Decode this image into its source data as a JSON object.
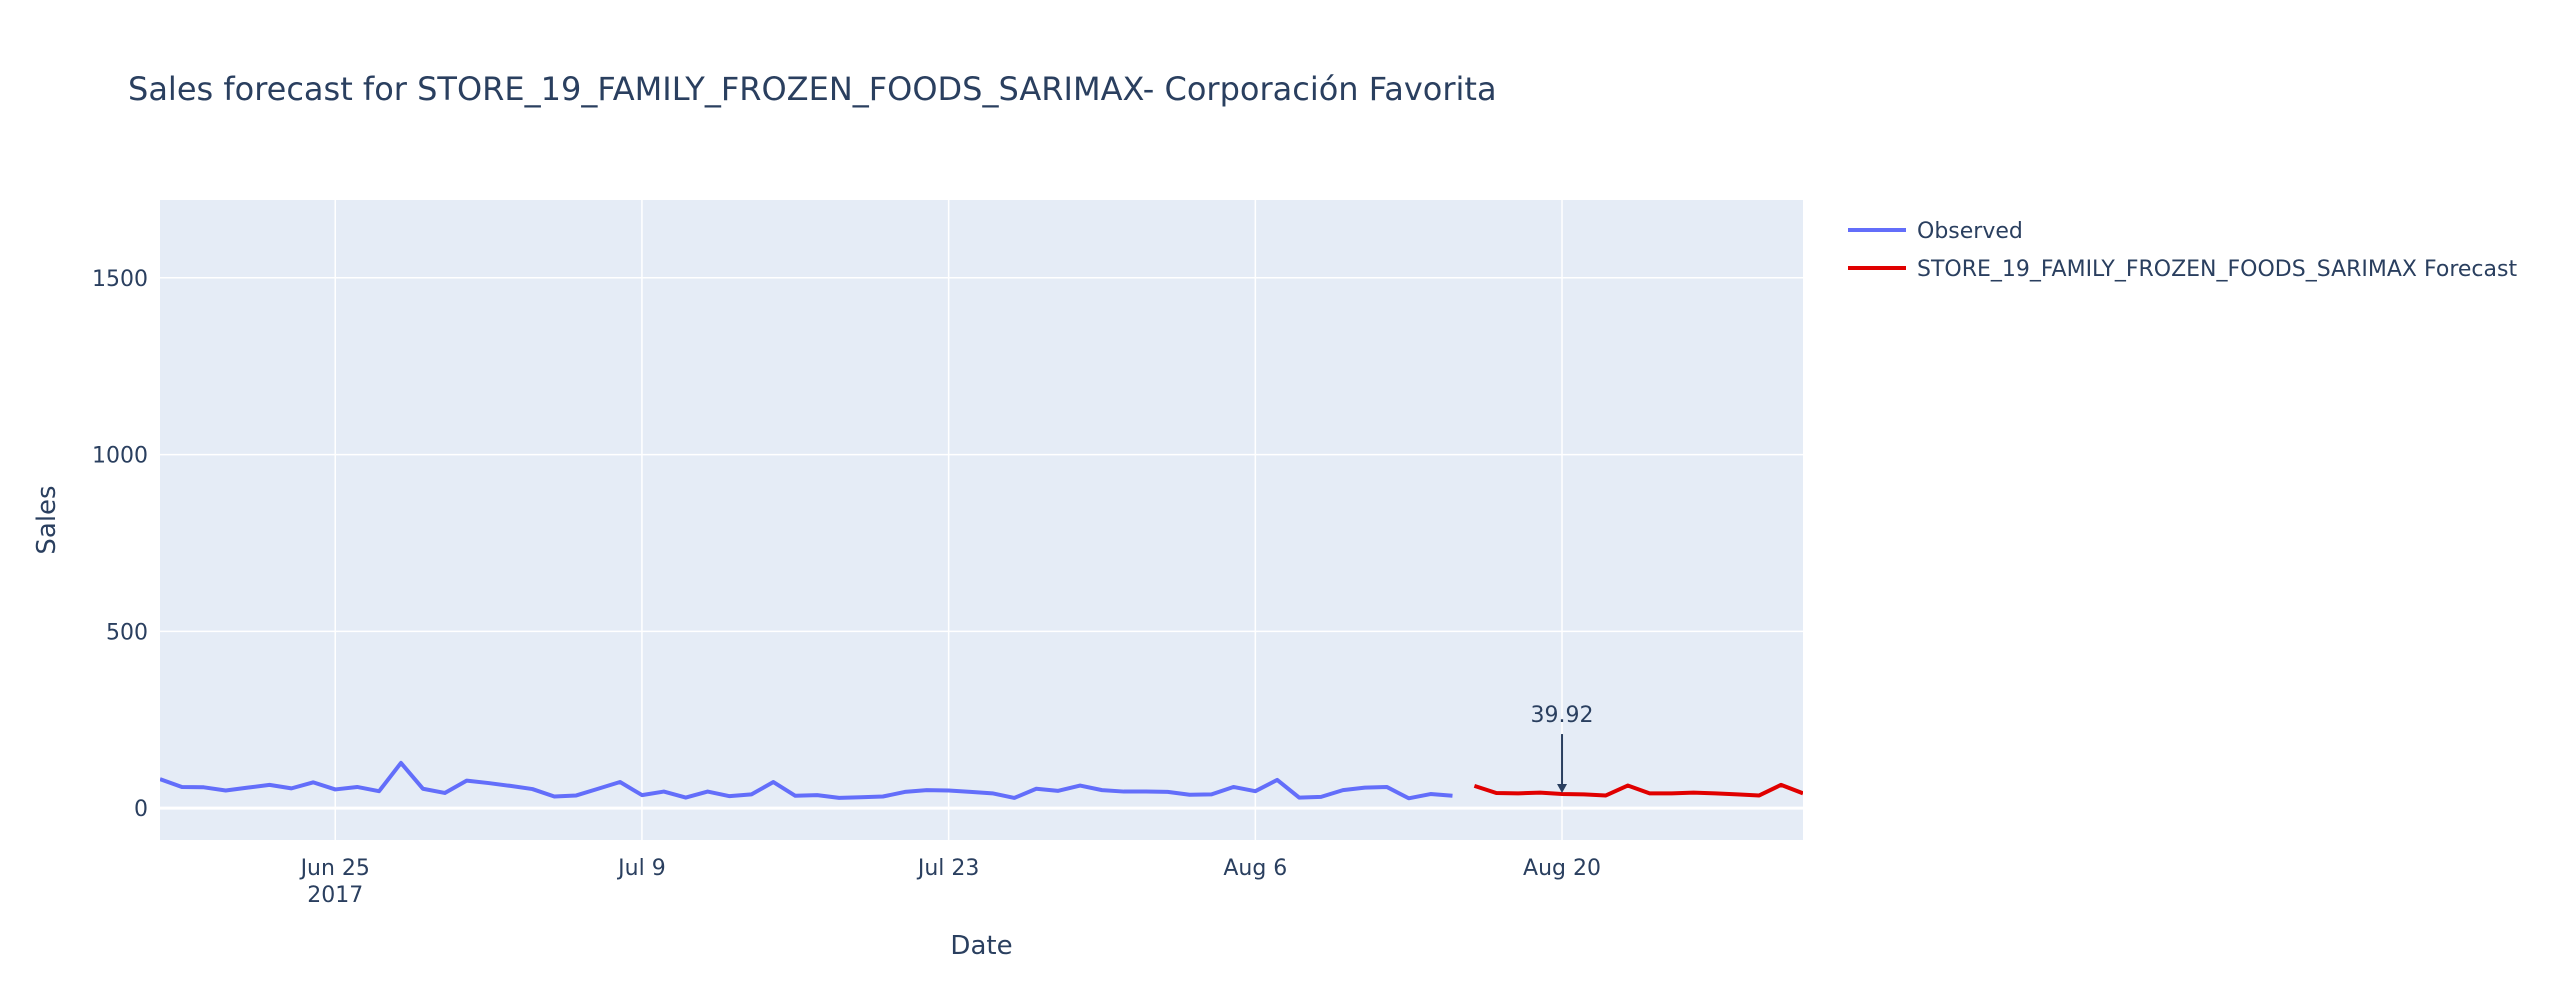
{
  "chart_data": {
    "type": "line",
    "title": "Sales forecast for STORE_19_FAMILY_FROZEN_FOODS_SARIMAX- Corporación Favorita",
    "xlabel": "Date",
    "ylabel": "Sales",
    "xlim": [
      "2017-06-17",
      "2017-08-31"
    ],
    "ylim": [
      -90,
      1720
    ],
    "yticks": [
      0,
      500,
      1000,
      1500
    ],
    "xticks": [
      {
        "date": "2017-06-25",
        "label": "Jun 25",
        "sublabel": "2017"
      },
      {
        "date": "2017-07-09",
        "label": "Jul 9",
        "sublabel": ""
      },
      {
        "date": "2017-07-23",
        "label": "Jul 23",
        "sublabel": ""
      },
      {
        "date": "2017-08-06",
        "label": "Aug 6",
        "sublabel": ""
      },
      {
        "date": "2017-08-20",
        "label": "Aug 20",
        "sublabel": ""
      }
    ],
    "grid": true,
    "legend_position": "top-right-outside",
    "series": [
      {
        "name": "Observed",
        "color": "#636efa",
        "points": [
          [
            "2017-06-17",
            82
          ],
          [
            "2017-06-18",
            60
          ],
          [
            "2017-06-19",
            59
          ],
          [
            "2017-06-20",
            50
          ],
          [
            "2017-06-21",
            58
          ],
          [
            "2017-06-22",
            66
          ],
          [
            "2017-06-23",
            56
          ],
          [
            "2017-06-24",
            73
          ],
          [
            "2017-06-25",
            53
          ],
          [
            "2017-06-26",
            60
          ],
          [
            "2017-06-27",
            48
          ],
          [
            "2017-06-28",
            128
          ],
          [
            "2017-06-29",
            55
          ],
          [
            "2017-06-30",
            43
          ],
          [
            "2017-07-01",
            78
          ],
          [
            "2017-07-02",
            71
          ],
          [
            "2017-07-03",
            63
          ],
          [
            "2017-07-04",
            54
          ],
          [
            "2017-07-05",
            33
          ],
          [
            "2017-07-06",
            36
          ],
          [
            "2017-07-07",
            55
          ],
          [
            "2017-07-08",
            74
          ],
          [
            "2017-07-09",
            37
          ],
          [
            "2017-07-10",
            47
          ],
          [
            "2017-07-11",
            30
          ],
          [
            "2017-07-12",
            47
          ],
          [
            "2017-07-13",
            34
          ],
          [
            "2017-07-14",
            39
          ],
          [
            "2017-07-15",
            74
          ],
          [
            "2017-07-16",
            35
          ],
          [
            "2017-07-17",
            37
          ],
          [
            "2017-07-18",
            29
          ],
          [
            "2017-07-19",
            31
          ],
          [
            "2017-07-20",
            33
          ],
          [
            "2017-07-21",
            46
          ],
          [
            "2017-07-22",
            51
          ],
          [
            "2017-07-23",
            50
          ],
          [
            "2017-07-24",
            46
          ],
          [
            "2017-07-25",
            42
          ],
          [
            "2017-07-26",
            29
          ],
          [
            "2017-07-27",
            55
          ],
          [
            "2017-07-28",
            49
          ],
          [
            "2017-07-29",
            64
          ],
          [
            "2017-07-30",
            51
          ],
          [
            "2017-07-31",
            47
          ],
          [
            "2017-08-01",
            47
          ],
          [
            "2017-08-02",
            46
          ],
          [
            "2017-08-03",
            38
          ],
          [
            "2017-08-04",
            39
          ],
          [
            "2017-08-05",
            60
          ],
          [
            "2017-08-06",
            48
          ],
          [
            "2017-08-07",
            80
          ],
          [
            "2017-08-08",
            30
          ],
          [
            "2017-08-09",
            32
          ],
          [
            "2017-08-10",
            51
          ],
          [
            "2017-08-11",
            58
          ],
          [
            "2017-08-12",
            60
          ],
          [
            "2017-08-13",
            28
          ],
          [
            "2017-08-14",
            40
          ],
          [
            "2017-08-15",
            35
          ]
        ]
      },
      {
        "name": "STORE_19_FAMILY_FROZEN_FOODS_SARIMAX Forecast",
        "color": "#e00000",
        "points": [
          [
            "2017-08-16",
            63
          ],
          [
            "2017-08-17",
            43
          ],
          [
            "2017-08-18",
            42
          ],
          [
            "2017-08-19",
            44
          ],
          [
            "2017-08-20",
            40
          ],
          [
            "2017-08-21",
            39
          ],
          [
            "2017-08-22",
            36
          ],
          [
            "2017-08-23",
            64
          ],
          [
            "2017-08-24",
            42
          ],
          [
            "2017-08-25",
            42
          ],
          [
            "2017-08-26",
            44
          ],
          [
            "2017-08-27",
            42
          ],
          [
            "2017-08-28",
            39
          ],
          [
            "2017-08-29",
            36
          ],
          [
            "2017-08-30",
            66
          ],
          [
            "2017-08-31",
            42
          ]
        ]
      }
    ],
    "annotation": {
      "date": "2017-08-20",
      "value": 39.92,
      "text": "39.92"
    }
  }
}
